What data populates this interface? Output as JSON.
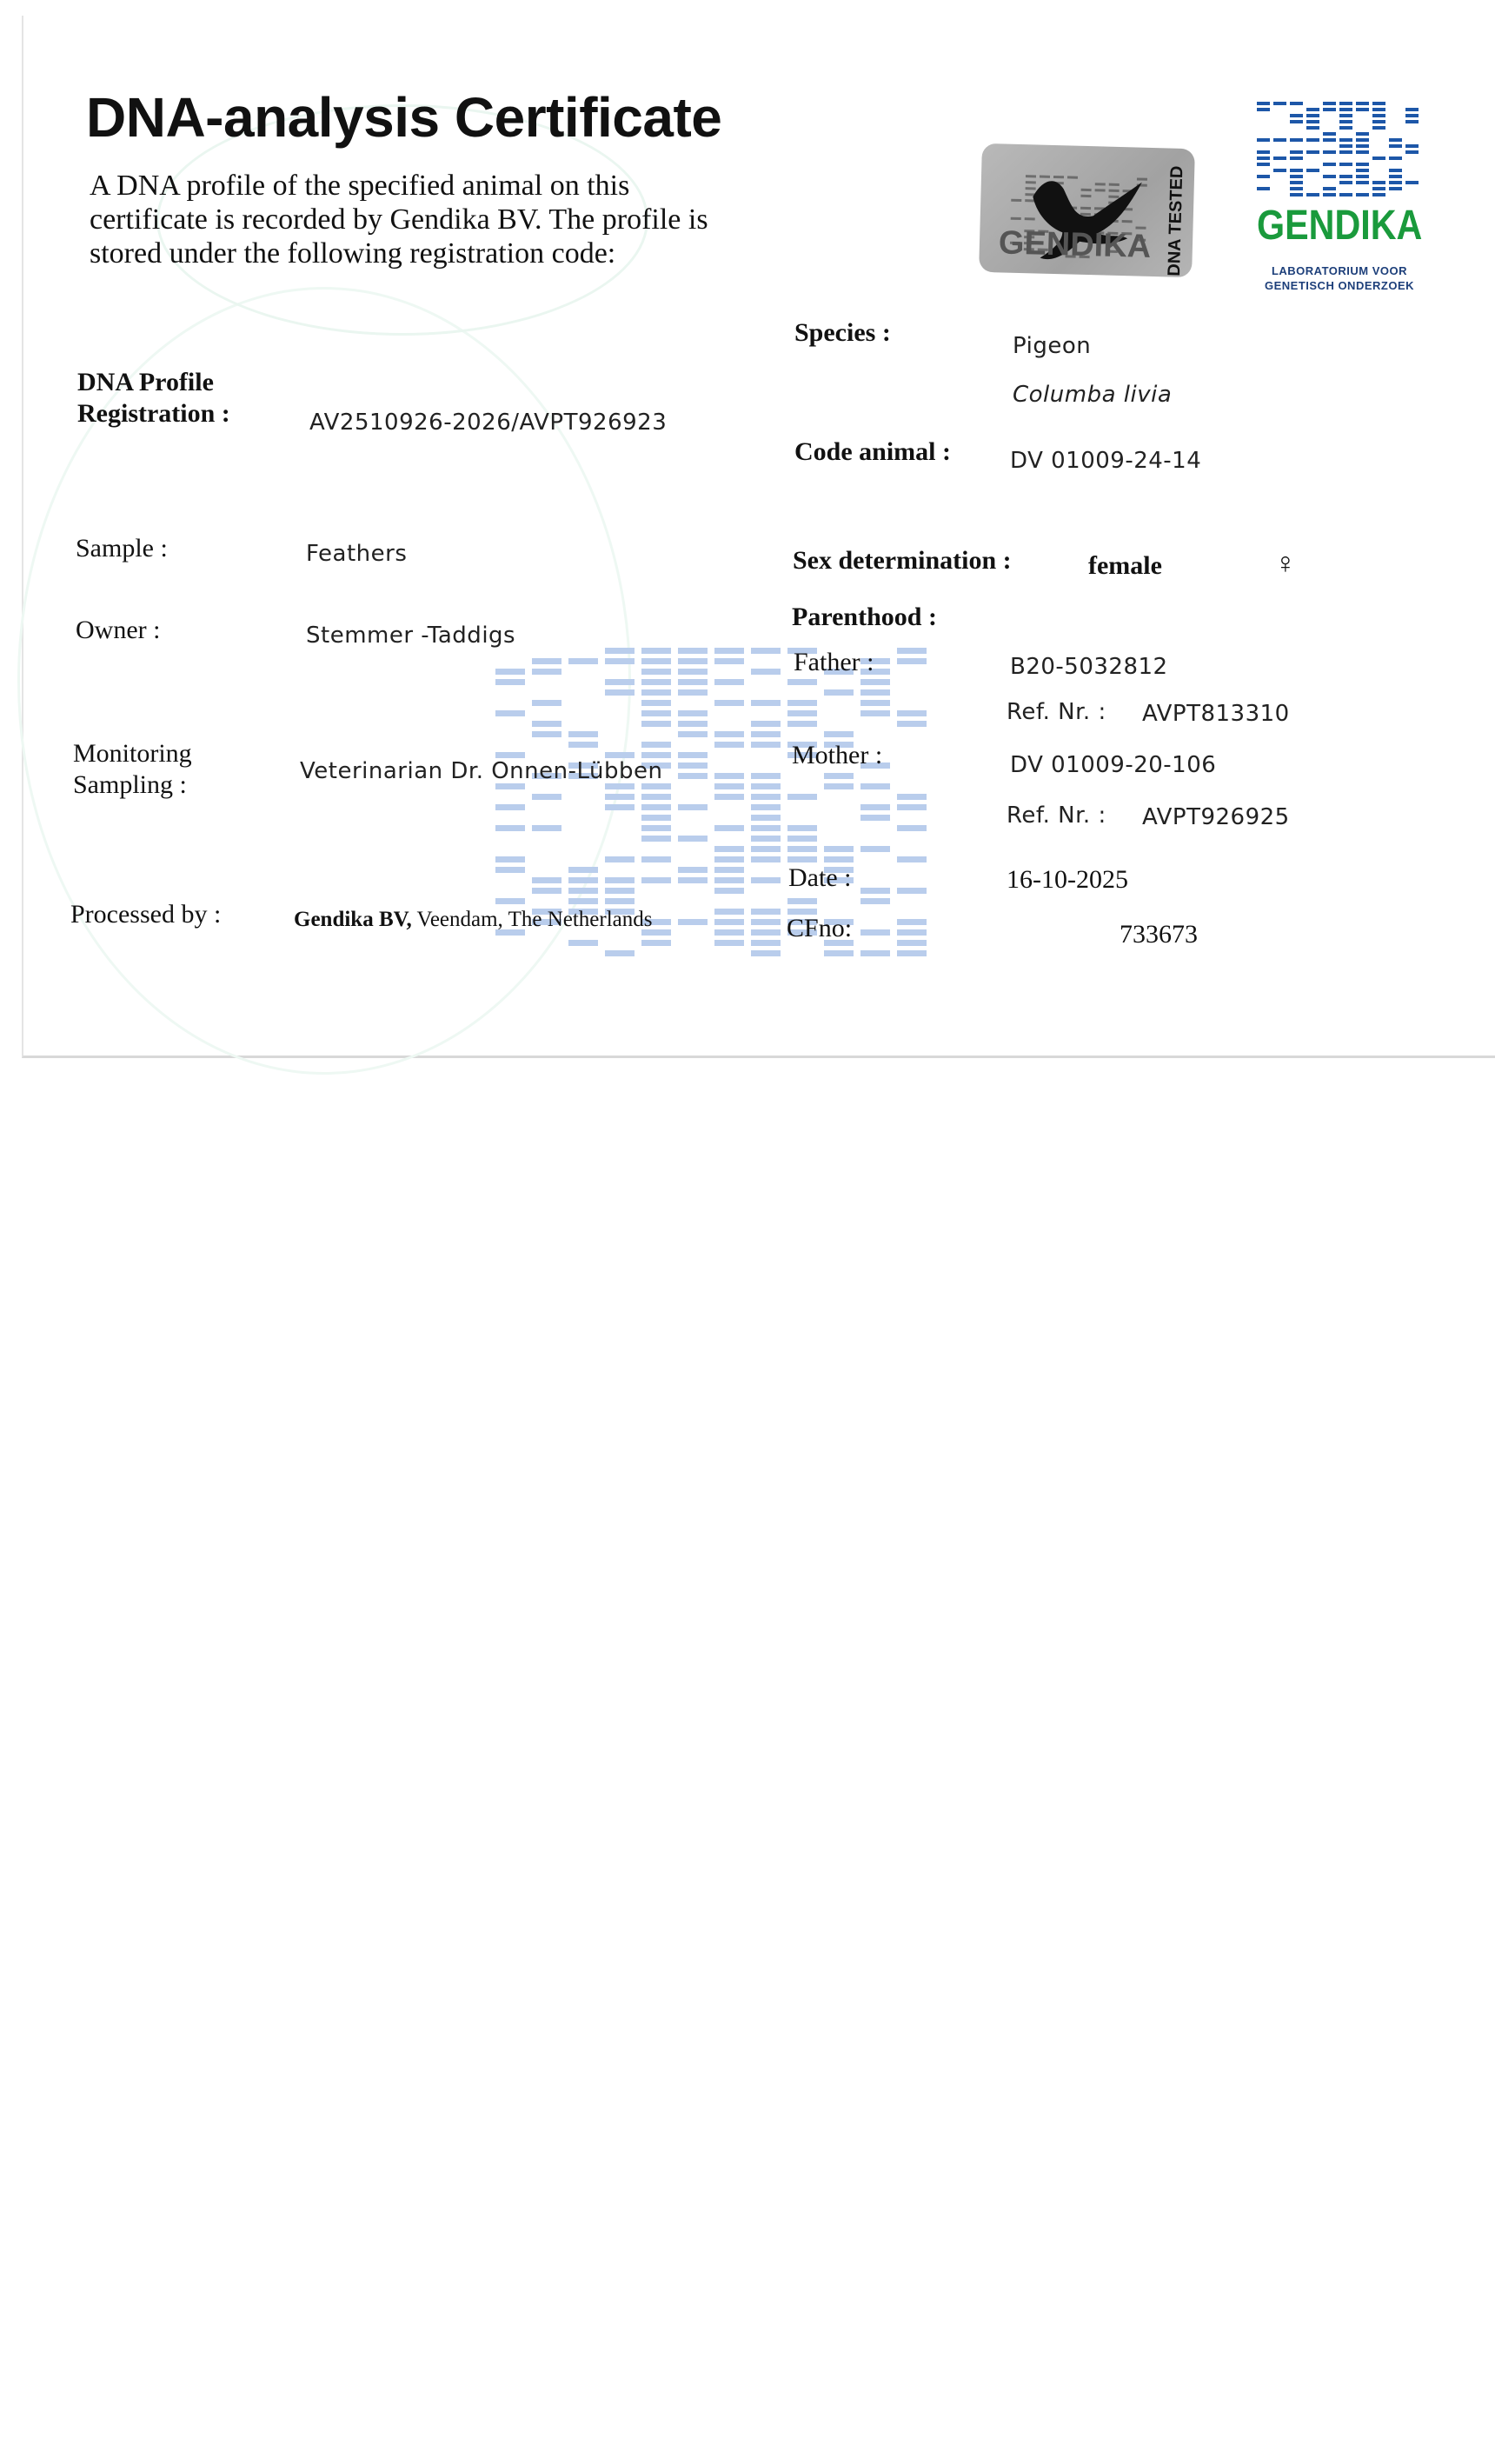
{
  "title": "DNA-analysis Certificate",
  "intro": "A DNA profile of the specified animal on this certificate is recorded by Gendika BV. The profile is stored under the following registration code:",
  "sticker": {
    "brand": "GENDIKA",
    "tested": "DNA TESTED",
    "icon": "pigeon-silhouette-icon"
  },
  "logo": {
    "name": "GENDIKA",
    "subtitle": "LABORATORIUM VOOR GENETISCH ONDERZOEK",
    "colors": {
      "name": "#1a9a3c",
      "bars": "#1d57a8"
    }
  },
  "watermark_color": "#b9cdec",
  "left": {
    "registration_label_1": "DNA Profile",
    "registration_label_2": "Registration :",
    "registration_value": "AV2510926-2026/AVPT926923",
    "sample_label": "Sample :",
    "sample_value": "Feathers",
    "owner_label": "Owner :",
    "owner_value": "Stemmer -Taddigs",
    "monitoring_label_1": "Monitoring",
    "monitoring_label_2": "Sampling :",
    "monitoring_value": "Veterinarian Dr. Onnen-Lübben",
    "processed_label": "Processed by :",
    "processed_company": "Gendika BV,",
    "processed_location": "Veendam, The Netherlands"
  },
  "right": {
    "species_label": "Species :",
    "species_common": "Pigeon",
    "species_latin": "Columba livia",
    "code_label": "Code animal :",
    "code_value": "DV 01009-24-14",
    "sex_label": "Sex determination :",
    "sex_value": "female",
    "sex_symbol": "♀",
    "parenthood_label": "Parenthood :",
    "father_label": "Father :",
    "father_value": "B20-5032812",
    "father_ref_label": "Ref. Nr. :",
    "father_ref_value": "AVPT813310",
    "mother_label": "Mother :",
    "mother_value": "DV 01009-20-106",
    "mother_ref_label": "Ref. Nr. :",
    "mother_ref_value": "AVPT926925",
    "date_label": "Date :",
    "date_value": "16-10-2025",
    "cfno_label": "CFno:",
    "cfno_value": "733673"
  }
}
